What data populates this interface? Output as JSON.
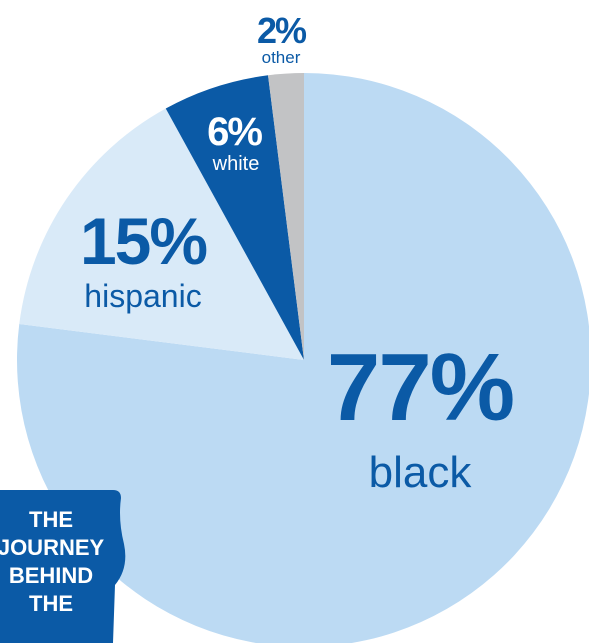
{
  "chart_data": {
    "type": "pie",
    "categories": [
      "black",
      "hispanic",
      "white",
      "other"
    ],
    "values": [
      77,
      15,
      6,
      2
    ],
    "value_labels": [
      "77%",
      "15%",
      "6%",
      "2%"
    ],
    "colors": [
      "#bcdaf3",
      "#d9eaf8",
      "#0b5aa6",
      "#c2c3c5"
    ],
    "label_colors": {
      "pct": [
        "#0b5aa6",
        "#0b5aa6",
        "#ffffff",
        "#0b5aa6"
      ],
      "cat": [
        "#0b5aa6",
        "#0b5aa6",
        "#ffffff",
        "#0b5aa6"
      ]
    },
    "start": "top",
    "direction": "clockwise",
    "title": ""
  },
  "badge": {
    "lines": [
      "THE",
      "JOURNEY",
      "BEHIND",
      "THE"
    ],
    "color": "#0b5aa6",
    "text_color": "#ffffff"
  }
}
